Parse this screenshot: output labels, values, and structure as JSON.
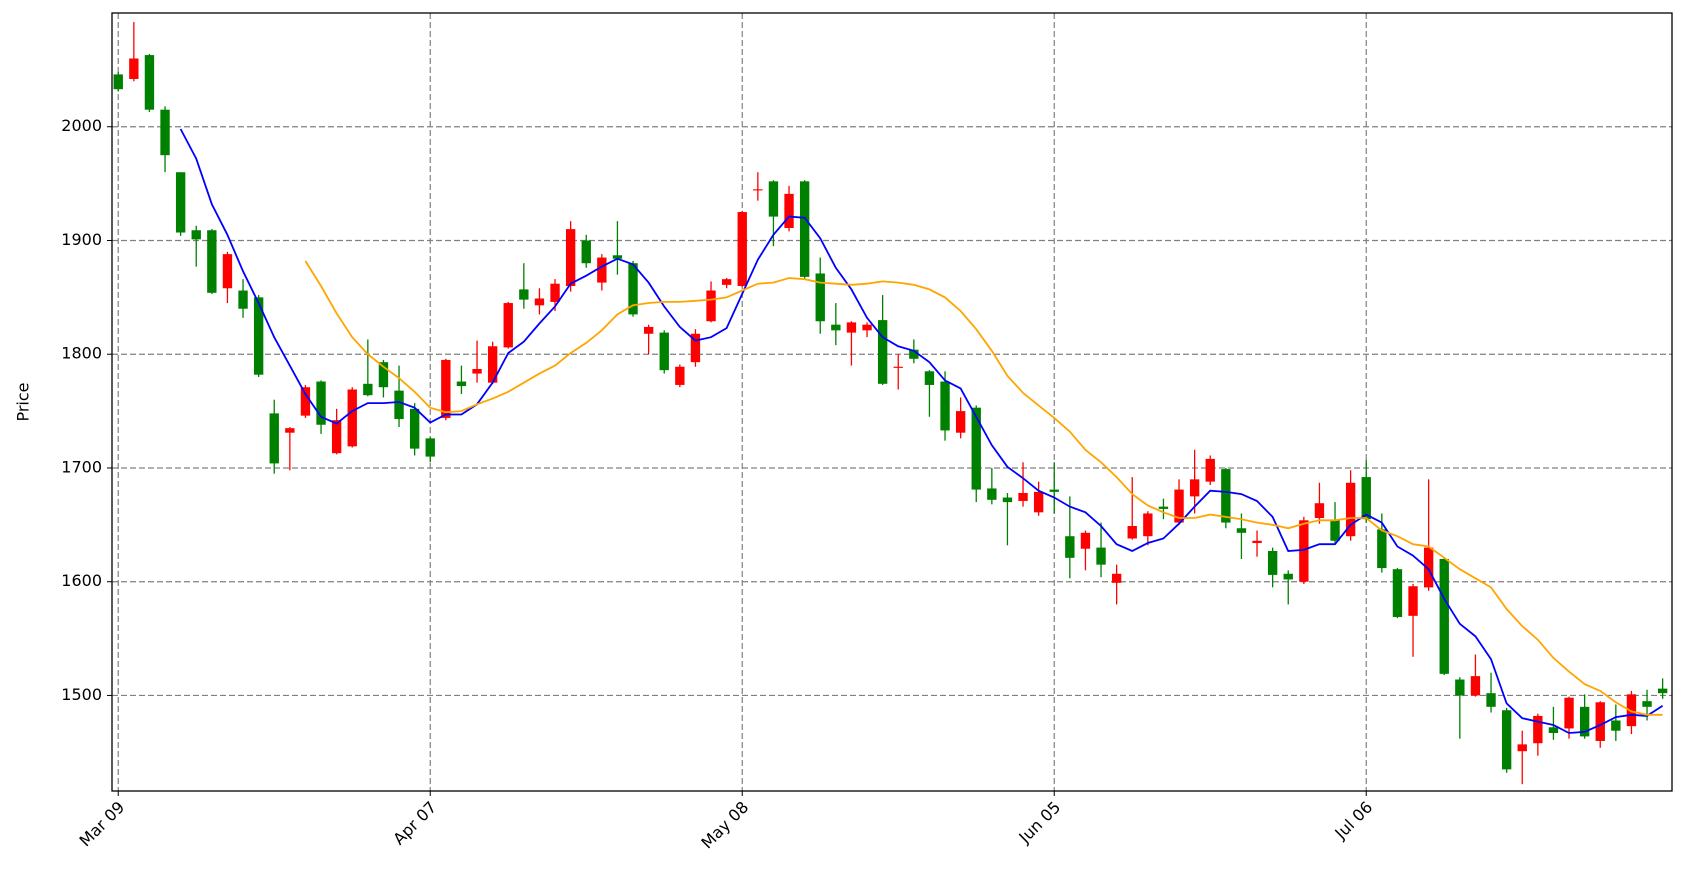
{
  "chart_data": {
    "type": "candlestick",
    "y_label": "Price",
    "categories": [
      "Mar 09",
      null,
      null,
      null,
      null,
      null,
      null,
      null,
      null,
      null,
      null,
      null,
      null,
      null,
      null,
      null,
      null,
      null,
      null,
      null,
      "Apr 07",
      null,
      null,
      null,
      null,
      null,
      null,
      null,
      null,
      null,
      null,
      null,
      null,
      null,
      null,
      null,
      null,
      null,
      null,
      null,
      "May 08",
      null,
      null,
      null,
      null,
      null,
      null,
      null,
      null,
      null,
      null,
      null,
      null,
      null,
      null,
      null,
      null,
      null,
      null,
      null,
      "Jun 05",
      null,
      null,
      null,
      null,
      null,
      null,
      null,
      null,
      null,
      null,
      null,
      null,
      null,
      null,
      null,
      null,
      null,
      null,
      null,
      "Jul 06",
      null,
      null,
      null,
      null,
      null,
      null,
      null,
      null,
      null,
      null,
      null,
      null,
      null,
      null,
      null,
      null,
      null,
      null,
      null
    ],
    "open": [
      2046,
      2042,
      2063,
      2015,
      1960,
      1909,
      1909,
      1858,
      1856,
      1850,
      1748,
      1731,
      1746,
      1776,
      1713,
      1719,
      1774,
      1793,
      1768,
      1752,
      1726,
      1744,
      1776,
      1783,
      1775,
      1806,
      1857,
      1843,
      1846,
      1860,
      1900,
      1863,
      1887,
      1880,
      1818,
      1819,
      1773,
      1793,
      1829,
      1861,
      1860,
      1944,
      1952,
      1911,
      1952,
      1871,
      1826,
      1819,
      1821,
      1830,
      1788,
      1804,
      1785,
      1776,
      1731,
      1753,
      1682,
      1674,
      1671,
      1661,
      1681,
      1640,
      1629,
      1630,
      1599,
      1638,
      1640,
      1666,
      1652,
      1675,
      1688,
      1699,
      1647,
      1634,
      1627,
      1607,
      1600,
      1656,
      1654,
      1640,
      1692,
      1646,
      1611,
      1570,
      1595,
      1620,
      1514,
      1500,
      1502,
      1487,
      1451,
      1458,
      1472,
      1471,
      1490,
      1460,
      1478,
      1473,
      1495,
      1506
    ],
    "high": [
      2048,
      2092,
      2064,
      2018,
      1960,
      1913,
      1910,
      1890,
      1866,
      1852,
      1760,
      1736,
      1773,
      1777,
      1752,
      1771,
      1813,
      1795,
      1790,
      1757,
      1727,
      1796,
      1790,
      1812,
      1811,
      1846,
      1880,
      1858,
      1866,
      1917,
      1905,
      1888,
      1917,
      1882,
      1826,
      1821,
      1791,
      1822,
      1864,
      1867,
      1926,
      1960,
      1953,
      1948,
      1953,
      1885,
      1845,
      1829,
      1828,
      1852,
      1800,
      1813,
      1786,
      1785,
      1762,
      1755,
      1700,
      1678,
      1705,
      1688,
      1705,
      1675,
      1645,
      1652,
      1615,
      1692,
      1662,
      1673,
      1690,
      1716,
      1711,
      1700,
      1660,
      1645,
      1630,
      1610,
      1657,
      1687,
      1670,
      1698,
      1707,
      1660,
      1612,
      1598,
      1690,
      1621,
      1516,
      1536,
      1520,
      1489,
      1469,
      1484,
      1490,
      1499,
      1501,
      1495,
      1492,
      1504,
      1505,
      1515
    ],
    "low": [
      2031,
      2040,
      2013,
      1960,
      1904,
      1877,
      1853,
      1845,
      1832,
      1780,
      1695,
      1698,
      1744,
      1730,
      1712,
      1718,
      1763,
      1762,
      1736,
      1711,
      1705,
      1742,
      1765,
      1775,
      1774,
      1805,
      1840,
      1835,
      1838,
      1855,
      1876,
      1856,
      1870,
      1833,
      1800,
      1783,
      1771,
      1789,
      1828,
      1858,
      1859,
      1935,
      1895,
      1908,
      1866,
      1818,
      1808,
      1790,
      1815,
      1773,
      1769,
      1792,
      1745,
      1724,
      1726,
      1670,
      1668,
      1632,
      1666,
      1658,
      1660,
      1603,
      1610,
      1604,
      1580,
      1637,
      1632,
      1655,
      1650,
      1660,
      1685,
      1647,
      1620,
      1622,
      1595,
      1580,
      1598,
      1651,
      1634,
      1636,
      1652,
      1608,
      1568,
      1534,
      1592,
      1518,
      1462,
      1499,
      1485,
      1432,
      1422,
      1447,
      1461,
      1462,
      1462,
      1454,
      1460,
      1466,
      1478,
      1497
    ],
    "close": [
      2033,
      2060,
      2015,
      1975,
      1907,
      1901,
      1854,
      1888,
      1840,
      1782,
      1704,
      1735,
      1771,
      1738,
      1742,
      1769,
      1764,
      1771,
      1743,
      1717,
      1710,
      1795,
      1772,
      1787,
      1807,
      1845,
      1848,
      1849,
      1862,
      1910,
      1880,
      1885,
      1884,
      1835,
      1824,
      1786,
      1789,
      1818,
      1856,
      1866,
      1925,
      1945,
      1921,
      1941,
      1868,
      1829,
      1821,
      1828,
      1826,
      1774,
      1789,
      1796,
      1773,
      1733,
      1750,
      1681,
      1672,
      1670,
      1678,
      1679,
      1679,
      1621,
      1643,
      1615,
      1607,
      1649,
      1660,
      1664,
      1681,
      1690,
      1708,
      1652,
      1643,
      1636,
      1606,
      1602,
      1654,
      1669,
      1636,
      1687,
      1655,
      1612,
      1569,
      1596,
      1630,
      1519,
      1500,
      1517,
      1490,
      1435,
      1457,
      1482,
      1467,
      1498,
      1464,
      1494,
      1469,
      1501,
      1490,
      1502
    ],
    "up_color": "#ff0000",
    "down_color": "#008000",
    "lines": [
      {
        "color": "#0000ff",
        "values": [
          null,
          null,
          null,
          null,
          1998,
          1972,
          1932,
          1905,
          1873,
          1845,
          1815,
          1790,
          1765,
          1745,
          1739,
          1750,
          1757,
          1757,
          1758,
          1753,
          1740,
          1747,
          1747,
          1756,
          1775,
          1801,
          1811,
          1827,
          1842,
          1862,
          1869,
          1877,
          1884,
          1879,
          1863,
          1842,
          1824,
          1812,
          1815,
          1823,
          1853,
          1883,
          1905,
          1921,
          1920,
          1902,
          1876,
          1857,
          1832,
          1815,
          1807,
          1803,
          1793,
          1777,
          1770,
          1745,
          1720,
          1701,
          1691,
          1680,
          1674,
          1666,
          1661,
          1649,
          1633,
          1627,
          1634,
          1638,
          1651,
          1666,
          1680,
          1679,
          1677,
          1671,
          1657,
          1627,
          1628,
          1633,
          1633,
          1650,
          1659,
          1652,
          1631,
          1623,
          1611,
          1585,
          1563,
          1552,
          1532,
          1493,
          1480,
          1477,
          1474,
          1467,
          1468,
          1474,
          1481,
          1483,
          1482,
          1491
        ]
      },
      {
        "color": "#ffa500",
        "values": [
          null,
          null,
          null,
          null,
          null,
          null,
          null,
          null,
          null,
          null,
          null,
          null,
          1882,
          1860,
          1836,
          1815,
          1800,
          1789,
          1779,
          1767,
          1753,
          1749,
          1750,
          1756,
          1761,
          1767,
          1775,
          1783,
          1790,
          1801,
          1810,
          1821,
          1835,
          1843,
          1845,
          1846,
          1846,
          1847,
          1848,
          1850,
          1856,
          1862,
          1863,
          1867,
          1866,
          1863,
          1862,
          1861,
          1862,
          1864,
          1863,
          1861,
          1857,
          1850,
          1838,
          1822,
          1803,
          1781,
          1766,
          1755,
          1744,
          1732,
          1716,
          1705,
          1692,
          1677,
          1667,
          1661,
          1656,
          1656,
          1659,
          1657,
          1655,
          1652,
          1650,
          1647,
          1651,
          1654,
          1654,
          1656,
          1656,
          1645,
          1640,
          1633,
          1631,
          1621,
          1611,
          1603,
          1595,
          1576,
          1561,
          1549,
          1533,
          1521,
          1510,
          1504,
          1494,
          1486,
          1483,
          1483
        ]
      }
    ],
    "xlim": [
      -0.4,
      99.6
    ],
    "ylim": [
      1416,
      2100
    ],
    "yticks": [
      1500,
      1600,
      1700,
      1800,
      1900,
      2000
    ],
    "grid": true
  }
}
